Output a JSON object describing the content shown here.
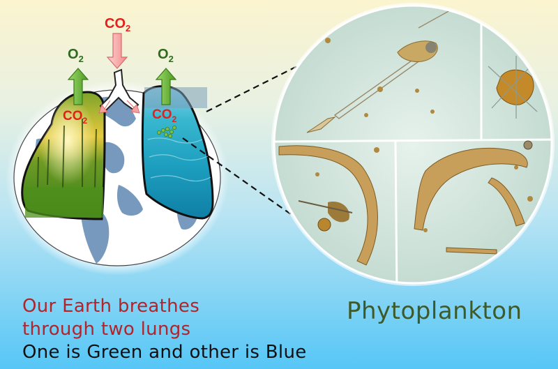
{
  "gas_labels": {
    "co2_top": "CO",
    "co2_top_sub": "2",
    "o2_left": "O",
    "o2_left_sub": "2",
    "o2_right": "O",
    "o2_right_sub": "2",
    "co2_left": "CO",
    "co2_left_sub": "2",
    "co2_right": "CO",
    "co2_right_sub": "2"
  },
  "caption": {
    "line1": "Our Earth breathes",
    "line2": "through two lungs",
    "line3": "One is Green and other is Blue"
  },
  "magnified_label": "Phytoplankton",
  "colors": {
    "caption_red": "#b0242b",
    "caption_black": "#101010",
    "phytoplankton_green": "#3d5a2a",
    "co2_red": "#e3201b",
    "o2_green": "#2e6b1e",
    "arrow_green": "#5fae2e",
    "arrow_pink": "#f5a0a0"
  }
}
